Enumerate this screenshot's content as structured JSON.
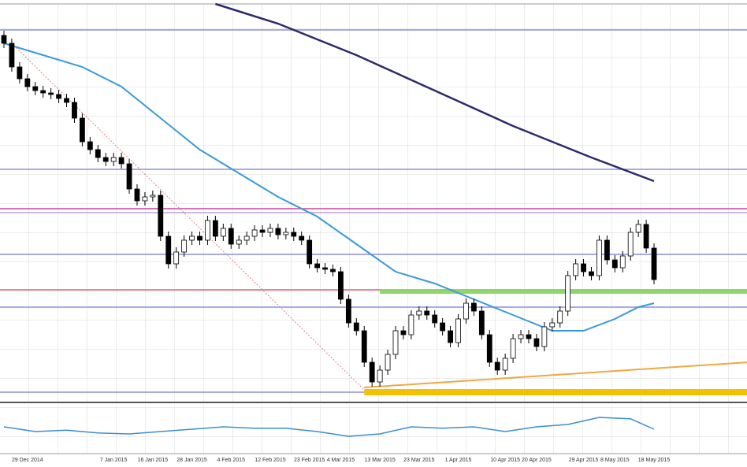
{
  "chart_data": {
    "type": "candlestick",
    "categories": [
      null,
      null,
      null,
      "29 Dec 2014",
      null,
      null,
      null,
      null,
      null,
      null,
      null,
      null,
      null,
      null,
      "7 Jan 2015",
      null,
      null,
      null,
      null,
      "16 Jan 2015",
      null,
      null,
      null,
      null,
      "28 Jan 2015",
      null,
      null,
      null,
      null,
      "4 Feb 2015",
      null,
      null,
      null,
      null,
      "12 Feb 2015",
      null,
      null,
      null,
      null,
      "23 Feb 2015",
      null,
      null,
      null,
      "4 Mar 2015",
      null,
      null,
      null,
      null,
      "13 Mar 2015",
      null,
      null,
      null,
      null,
      "23 Mar 2015",
      null,
      null,
      null,
      null,
      "1 Apr 2015",
      null,
      null,
      null,
      null,
      null,
      "10 Apr 2015",
      null,
      null,
      null,
      "20 Apr 2015",
      null,
      null,
      null,
      null,
      null,
      "29 Apr 2015",
      null,
      null,
      null,
      "8 May 2015",
      null,
      null,
      null,
      null,
      "18 May 2015"
    ],
    "open": [
      460,
      450,
      420,
      405,
      395,
      390,
      387,
      385,
      380,
      375,
      355,
      325,
      315,
      305,
      300,
      305,
      297,
      265,
      250,
      255,
      257,
      205,
      170,
      185,
      200,
      205,
      200,
      225,
      205,
      215,
      195,
      200,
      205,
      213,
      210,
      215,
      207,
      210,
      205,
      200,
      170,
      165,
      163,
      160,
      125,
      95,
      85,
      45,
      20,
      35,
      55,
      85,
      80,
      105,
      110,
      105,
      95,
      85,
      70,
      100,
      120,
      110,
      80,
      45,
      35,
      50,
      75,
      80,
      75,
      65,
      90,
      95,
      110,
      155,
      170,
      160,
      155,
      200,
      175,
      165,
      180,
      210,
      220,
      190
    ],
    "high": [
      466,
      456,
      426,
      411,
      401,
      396,
      393,
      391,
      386,
      381,
      361,
      331,
      321,
      311,
      311,
      311,
      303,
      271,
      261,
      263,
      263,
      211,
      191,
      206,
      211,
      211,
      231,
      231,
      221,
      221,
      206,
      211,
      219,
      219,
      221,
      221,
      216,
      216,
      211,
      206,
      176,
      171,
      169,
      166,
      131,
      101,
      91,
      51,
      41,
      61,
      91,
      91,
      111,
      116,
      116,
      111,
      101,
      91,
      106,
      126,
      126,
      116,
      86,
      51,
      56,
      81,
      86,
      86,
      81,
      96,
      101,
      116,
      161,
      176,
      176,
      166,
      206,
      206,
      181,
      186,
      216,
      226,
      226,
      196
    ],
    "low": [
      444,
      414,
      399,
      389,
      384,
      381,
      379,
      374,
      369,
      349,
      319,
      309,
      299,
      294,
      294,
      291,
      259,
      244,
      244,
      249,
      199,
      164,
      164,
      179,
      194,
      194,
      194,
      199,
      199,
      189,
      189,
      194,
      199,
      204,
      204,
      201,
      201,
      199,
      194,
      164,
      159,
      157,
      154,
      119,
      89,
      79,
      39,
      14,
      14,
      29,
      49,
      74,
      74,
      99,
      99,
      89,
      79,
      64,
      64,
      94,
      104,
      74,
      39,
      29,
      29,
      44,
      69,
      69,
      59,
      59,
      84,
      89,
      104,
      149,
      154,
      149,
      149,
      169,
      159,
      159,
      174,
      204,
      184,
      144
    ],
    "close": [
      450,
      420,
      405,
      395,
      390,
      387,
      385,
      380,
      375,
      355,
      325,
      315,
      305,
      300,
      305,
      297,
      265,
      250,
      255,
      257,
      205,
      170,
      185,
      200,
      205,
      200,
      225,
      205,
      215,
      195,
      200,
      205,
      213,
      210,
      215,
      207,
      210,
      205,
      200,
      170,
      165,
      163,
      160,
      125,
      95,
      85,
      45,
      20,
      35,
      55,
      85,
      80,
      105,
      110,
      105,
      95,
      85,
      70,
      100,
      120,
      110,
      80,
      45,
      35,
      50,
      75,
      80,
      75,
      65,
      90,
      95,
      110,
      155,
      170,
      160,
      155,
      200,
      175,
      165,
      180,
      210,
      220,
      190,
      150
    ],
    "ylim": [
      0,
      500
    ],
    "grid": true,
    "up_color": "#ffffff",
    "down_color": "#000000",
    "moving_average_fast": {
      "color": "#3a9ad9",
      "x": [
        0,
        5,
        10,
        15,
        20,
        25,
        30,
        35,
        40,
        45,
        50,
        55,
        60,
        65,
        70,
        74,
        78,
        81,
        83
      ],
      "values": [
        450,
        435,
        420,
        395,
        355,
        315,
        285,
        255,
        230,
        195,
        160,
        145,
        125,
        105,
        85,
        85,
        100,
        115,
        120
      ]
    },
    "moving_average_slow": {
      "color": "#2b2a6e",
      "x": [
        27,
        35,
        45,
        55,
        65,
        75,
        83
      ],
      "values": [
        500,
        475,
        435,
        390,
        345,
        305,
        275
      ]
    },
    "levels": [
      {
        "value": 467,
        "color": "#8a8fe0"
      },
      {
        "value": 290,
        "color": "#8a8fe0"
      },
      {
        "value": 240,
        "color": "#c8479a"
      },
      {
        "value": 235,
        "color": "#b9a0d8"
      },
      {
        "value": 182,
        "color": "#8a8fe0"
      },
      {
        "value": 137,
        "color": "#e0607a"
      },
      {
        "value": 115,
        "color": "#8a8fe0"
      },
      {
        "value": 7,
        "color": "#8a8fe0"
      }
    ],
    "resistance_zone": {
      "value": 135,
      "from": 48,
      "color": "#8fd66a"
    },
    "support_zone": {
      "value": 7,
      "from": 46,
      "color": "#f2c200"
    },
    "trend_line": {
      "color": "#f0a840",
      "x": [
        46,
        95
      ],
      "values": [
        13,
        45
      ]
    },
    "decline_line": {
      "color": "#e08080",
      "x": [
        1,
        46
      ],
      "values": [
        450,
        10
      ]
    },
    "oscillator": {
      "color": "#3a8fd0",
      "ylim": [
        0,
        100
      ],
      "x": [
        0,
        4,
        8,
        12,
        16,
        20,
        24,
        28,
        32,
        36,
        40,
        44,
        48,
        52,
        56,
        60,
        64,
        68,
        72,
        76,
        80,
        83
      ],
      "values": [
        55,
        45,
        48,
        42,
        40,
        45,
        50,
        55,
        52,
        52,
        45,
        35,
        40,
        55,
        52,
        55,
        45,
        55,
        60,
        75,
        72,
        50
      ]
    }
  }
}
